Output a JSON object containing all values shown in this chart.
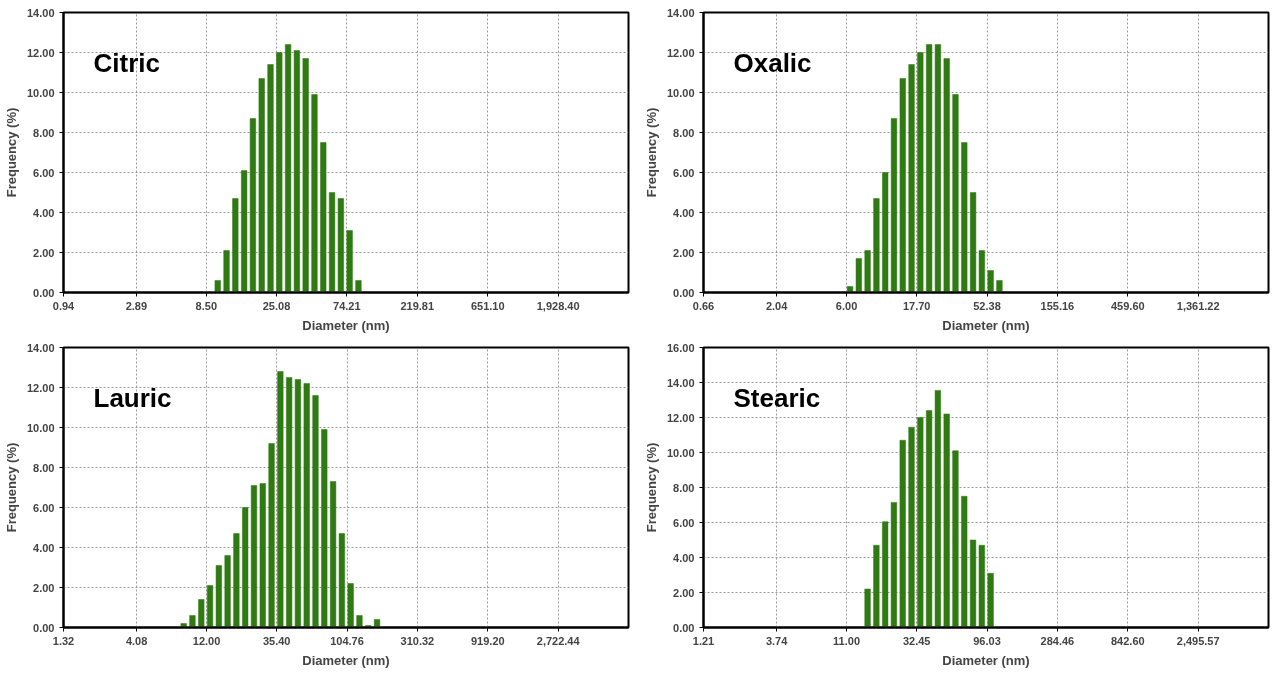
{
  "chart_data": [
    {
      "type": "bar",
      "title": "Citric",
      "xlabel": "Diameter (nm)",
      "ylabel": "Frequency (%)",
      "log": "x",
      "grid": true,
      "color": "#2f7a12",
      "x": [
        10.14,
        11.61,
        13.3,
        15.23,
        17.44,
        19.97,
        22.87,
        26.19,
        29.99,
        34.35,
        39.33,
        45.04,
        51.58,
        59.07,
        67.65,
        77.47,
        88.72
      ],
      "values": [
        0.6,
        2.1,
        4.7,
        6.1,
        8.7,
        10.7,
        11.4,
        12.0,
        12.4,
        12.1,
        11.7,
        9.9,
        7.5,
        5.0,
        4.7,
        3.1,
        0.6
      ],
      "xlim": [
        0.94,
        5706
      ],
      "ylim": [
        0,
        14
      ],
      "xticks": [
        {
          "value": 0.94,
          "label": "0.94"
        },
        {
          "value": 2.89,
          "label": "2.89"
        },
        {
          "value": 8.5,
          "label": "8.50"
        },
        {
          "value": 25.08,
          "label": "25.08"
        },
        {
          "value": 74.21,
          "label": "74.21"
        },
        {
          "value": 219.81,
          "label": "219.81"
        },
        {
          "value": 651.1,
          "label": "651.10"
        },
        {
          "value": 1928.4,
          "label": "1,928.40"
        }
      ],
      "yticks": [
        {
          "value": 0,
          "label": "0.00"
        },
        {
          "value": 2,
          "label": "2.00"
        },
        {
          "value": 4,
          "label": "4.00"
        },
        {
          "value": 6,
          "label": "6.00"
        },
        {
          "value": 8,
          "label": "8.00"
        },
        {
          "value": 10,
          "label": "10.00"
        },
        {
          "value": 12,
          "label": "12.00"
        },
        {
          "value": 14,
          "label": "14.00"
        }
      ]
    },
    {
      "type": "bar",
      "title": "Oxalic",
      "xlabel": "Diameter (nm)",
      "ylabel": "Frequency (%)",
      "log": "x",
      "grid": true,
      "color": "#2f7a12",
      "x": [
        6.33,
        7.25,
        8.3,
        9.51,
        10.89,
        12.47,
        14.28,
        16.35,
        18.72,
        21.44,
        24.56,
        28.12,
        32.2,
        36.88,
        42.24,
        48.37,
        55.39,
        63.44
      ],
      "values": [
        0.3,
        1.7,
        2.1,
        4.7,
        6.0,
        8.7,
        10.7,
        11.4,
        12.0,
        12.4,
        12.4,
        11.7,
        9.9,
        7.5,
        5.0,
        2.1,
        1.1,
        0.6
      ],
      "xlim": [
        0.66,
        4028
      ],
      "ylim": [
        0,
        14
      ],
      "xticks": [
        {
          "value": 0.66,
          "label": "0.66"
        },
        {
          "value": 2.04,
          "label": "2.04"
        },
        {
          "value": 6.0,
          "label": "6.00"
        },
        {
          "value": 17.7,
          "label": "17.70"
        },
        {
          "value": 52.38,
          "label": "52.38"
        },
        {
          "value": 155.16,
          "label": "155.16"
        },
        {
          "value": 459.6,
          "label": "459.60"
        },
        {
          "value": 1361.22,
          "label": "1,361.22"
        }
      ],
      "yticks": [
        {
          "value": 0,
          "label": "0.00"
        },
        {
          "value": 2,
          "label": "2.00"
        },
        {
          "value": 4,
          "label": "4.00"
        },
        {
          "value": 6,
          "label": "6.00"
        },
        {
          "value": 8,
          "label": "8.00"
        },
        {
          "value": 10,
          "label": "10.00"
        },
        {
          "value": 12,
          "label": "12.00"
        },
        {
          "value": 14,
          "label": "14.00"
        }
      ]
    },
    {
      "type": "bar",
      "title": "Lauric",
      "xlabel": "Diameter (nm)",
      "ylabel": "Frequency (%)",
      "log": "x",
      "grid": true,
      "color": "#2f7a12",
      "x": [
        8.43,
        9.65,
        11.06,
        12.66,
        14.5,
        16.6,
        19.01,
        21.77,
        24.94,
        28.56,
        32.7,
        37.45,
        42.89,
        49.12,
        56.25,
        64.42,
        73.78,
        84.49,
        96.76,
        110.81,
        126.9,
        145.33,
        166.43
      ],
      "values": [
        0.2,
        0.6,
        1.4,
        2.1,
        3.1,
        3.6,
        4.7,
        6.0,
        7.1,
        7.2,
        9.2,
        12.8,
        12.5,
        12.4,
        12.2,
        11.6,
        9.9,
        7.3,
        4.7,
        2.2,
        0.6,
        0.1,
        0.4
      ],
      "xlim": [
        1.32,
        8056
      ],
      "ylim": [
        0,
        14
      ],
      "xticks": [
        {
          "value": 1.32,
          "label": "1.32"
        },
        {
          "value": 4.08,
          "label": "4.08"
        },
        {
          "value": 12.0,
          "label": "12.00"
        },
        {
          "value": 35.4,
          "label": "35.40"
        },
        {
          "value": 104.76,
          "label": "104.76"
        },
        {
          "value": 310.32,
          "label": "310.32"
        },
        {
          "value": 919.2,
          "label": "919.20"
        },
        {
          "value": 2722.44,
          "label": "2,722.44"
        }
      ],
      "yticks": [
        {
          "value": 0,
          "label": "0.00"
        },
        {
          "value": 2,
          "label": "2.00"
        },
        {
          "value": 4,
          "label": "4.00"
        },
        {
          "value": 6,
          "label": "6.00"
        },
        {
          "value": 8,
          "label": "8.00"
        },
        {
          "value": 10,
          "label": "10.00"
        },
        {
          "value": 12,
          "label": "12.00"
        },
        {
          "value": 14,
          "label": "14.00"
        }
      ]
    },
    {
      "type": "bar",
      "title": "Stearic",
      "xlabel": "Diameter (nm)",
      "ylabel": "Frequency (%)",
      "log": "x",
      "grid": true,
      "color": "#2f7a12",
      "x": [
        15.21,
        17.42,
        19.95,
        22.84,
        26.16,
        29.96,
        34.31,
        39.29,
        44.99,
        51.53,
        59.01,
        67.58,
        77.39,
        88.62,
        101.49
      ],
      "values": [
        2.2,
        4.7,
        6.05,
        7.15,
        10.7,
        11.45,
        12.0,
        12.4,
        13.55,
        12.2,
        10.1,
        7.5,
        5.0,
        4.7,
        3.1
      ],
      "xlim": [
        1.21,
        7384
      ],
      "ylim": [
        0,
        16
      ],
      "xticks": [
        {
          "value": 1.21,
          "label": "1.21"
        },
        {
          "value": 3.74,
          "label": "3.74"
        },
        {
          "value": 11.0,
          "label": "11.00"
        },
        {
          "value": 32.45,
          "label": "32.45"
        },
        {
          "value": 96.03,
          "label": "96.03"
        },
        {
          "value": 284.46,
          "label": "284.46"
        },
        {
          "value": 842.6,
          "label": "842.60"
        },
        {
          "value": 2495.57,
          "label": "2,495.57"
        }
      ],
      "yticks": [
        {
          "value": 0,
          "label": "0.00"
        },
        {
          "value": 2,
          "label": "2.00"
        },
        {
          "value": 4,
          "label": "4.00"
        },
        {
          "value": 6,
          "label": "6.00"
        },
        {
          "value": 8,
          "label": "8.00"
        },
        {
          "value": 10,
          "label": "10.00"
        },
        {
          "value": 12,
          "label": "12.00"
        },
        {
          "value": 14,
          "label": "14.00"
        },
        {
          "value": 16,
          "label": "16.00"
        }
      ]
    }
  ]
}
